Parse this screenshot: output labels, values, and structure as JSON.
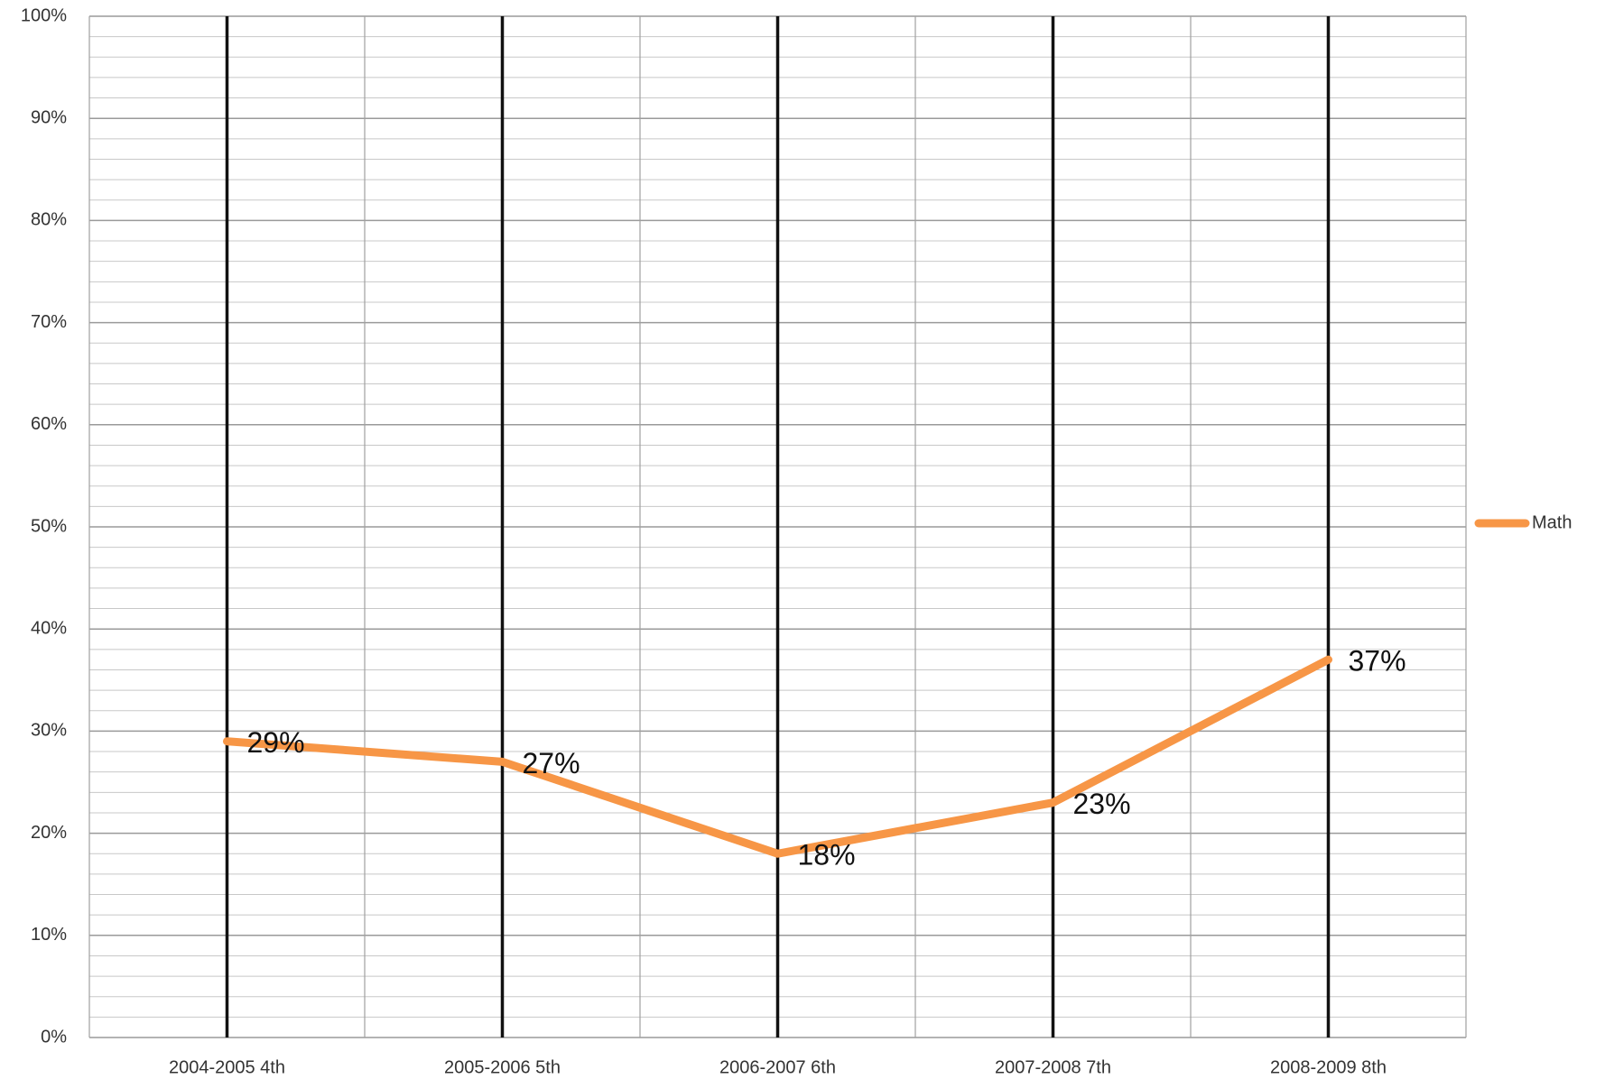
{
  "chart_data": {
    "type": "line",
    "categories": [
      "2004-2005 4th",
      "2005-2006 5th",
      "2006-2007 6th",
      "2007-2008 7th",
      "2008-2009 8th"
    ],
    "series": [
      {
        "name": "Math",
        "color": "#f79646",
        "values": [
          29,
          27,
          18,
          23,
          37
        ],
        "value_labels": [
          "29%",
          "27%",
          "18%",
          "23%",
          "37%"
        ]
      }
    ],
    "ylim": [
      0,
      100
    ],
    "yticks": [
      {
        "value": 0,
        "label": "0%"
      },
      {
        "value": 10,
        "label": "10%"
      },
      {
        "value": 20,
        "label": "20%"
      },
      {
        "value": 30,
        "label": "30%"
      },
      {
        "value": 40,
        "label": "40%"
      },
      {
        "value": 50,
        "label": "50%"
      },
      {
        "value": 60,
        "label": "60%"
      },
      {
        "value": 70,
        "label": "70%"
      },
      {
        "value": 80,
        "label": "80%"
      },
      {
        "value": 90,
        "label": "90%"
      },
      {
        "value": 100,
        "label": "100%"
      }
    ],
    "minor_yticks": [
      2,
      4,
      6,
      8,
      12,
      14,
      16,
      18,
      22,
      24,
      26,
      28,
      32,
      34,
      36,
      38,
      42,
      44,
      46,
      48,
      52,
      54,
      56,
      58,
      62,
      64,
      66,
      68,
      72,
      74,
      76,
      78,
      82,
      84,
      86,
      88,
      92,
      94,
      96,
      98
    ],
    "grid": true,
    "legend": "right"
  }
}
